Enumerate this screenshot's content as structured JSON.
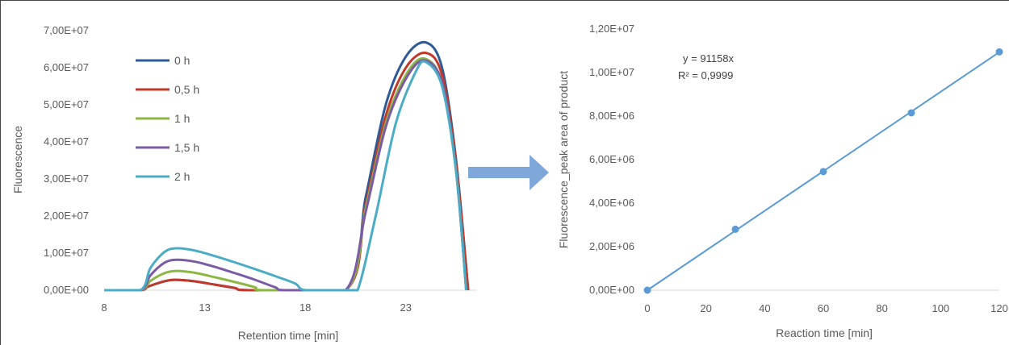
{
  "chart_data": [
    {
      "type": "line",
      "xlabel": "Retention  time [min]",
      "ylabel": "Fluorescence",
      "xlim": [
        8,
        26.5
      ],
      "ylim": [
        0,
        70000000
      ],
      "x_ticks": [
        "8",
        "13",
        "18",
        "23"
      ],
      "y_ticks": [
        "0,00E+00",
        "1,00E+07",
        "2,00E+07",
        "3,00E+07",
        "4,00E+07",
        "5,00E+07",
        "6,00E+07",
        "7,00E+07"
      ],
      "legend_position": "top-left",
      "series": [
        {
          "name": "0 h",
          "color": "#2E5A98",
          "x": [
            8,
            9.8,
            10.2,
            11,
            11.5,
            12.5,
            13.5,
            14.5,
            15.2,
            20.0,
            21,
            22,
            23,
            24,
            24.8,
            25.5,
            26.1
          ],
          "y": [
            0,
            0,
            1000000,
            2400000,
            2800000,
            2400000,
            1500000,
            600000,
            0,
            0,
            25000000,
            50000000,
            63000000,
            66800000,
            60000000,
            35000000,
            0
          ]
        },
        {
          "name": "0,5 h",
          "color": "#C0392B",
          "x": [
            8,
            9.8,
            10.2,
            11,
            11.5,
            12.5,
            13.5,
            14.5,
            15.2,
            20.0,
            21,
            22,
            23,
            24,
            24.8,
            25.5,
            26.1
          ],
          "y": [
            0,
            0,
            1000000,
            2400000,
            2800000,
            2400000,
            1500000,
            600000,
            0,
            0,
            23000000,
            47000000,
            60000000,
            64000000,
            58000000,
            34000000,
            0
          ]
        },
        {
          "name": "1 h",
          "color": "#8DB743",
          "x": [
            8,
            9.8,
            10.3,
            11,
            11.6,
            12.5,
            13.5,
            14.5,
            15.5,
            15.9,
            20.0,
            21,
            22,
            23,
            23.9,
            24.8,
            25.5,
            26.0
          ],
          "y": [
            0,
            0,
            2500000,
            4600000,
            5200000,
            4700000,
            3500000,
            2200000,
            800000,
            0,
            0,
            22000000,
            45000000,
            58000000,
            62500000,
            56000000,
            32000000,
            0
          ]
        },
        {
          "name": "1,5 h",
          "color": "#7B5BA6",
          "x": [
            8,
            9.8,
            10.3,
            11,
            11.6,
            12.5,
            13.5,
            14.5,
            15.5,
            16.5,
            17.0,
            20.0,
            21,
            22,
            23,
            23.9,
            24.8,
            25.5,
            26.0
          ],
          "y": [
            0,
            0,
            4000000,
            7400000,
            8200000,
            7700000,
            6300000,
            4600000,
            2800000,
            800000,
            0,
            0,
            21000000,
            44000000,
            57000000,
            62000000,
            56000000,
            32000000,
            0
          ]
        },
        {
          "name": "2 h",
          "color": "#4BACC6",
          "x": [
            8,
            9.8,
            10.3,
            11,
            11.6,
            12.5,
            13.5,
            14.5,
            15.5,
            16.5,
            17.5,
            18.0,
            20.0,
            20.6,
            21.5,
            22.5,
            23.5,
            24.0,
            24.8,
            25.5,
            26.0
          ],
          "y": [
            0,
            0,
            6000000,
            10300000,
            11300000,
            10700000,
            9200000,
            7500000,
            5700000,
            3800000,
            1800000,
            0,
            0,
            0,
            20000000,
            45000000,
            59000000,
            61500000,
            55000000,
            32000000,
            0
          ]
        }
      ]
    },
    {
      "type": "scatter",
      "xlabel": "Reaction time [min]",
      "ylabel": "Fluorescence_peak area of product",
      "xlim": [
        0,
        120
      ],
      "ylim": [
        0,
        12000000
      ],
      "x_ticks": [
        "0",
        "20",
        "40",
        "60",
        "80",
        "100",
        "120"
      ],
      "y_ticks": [
        "0,00E+00",
        "2,00E+06",
        "4,00E+06",
        "6,00E+06",
        "8,00E+06",
        "1,00E+07",
        "1,20E+07"
      ],
      "trendline": {
        "slope": 91158,
        "equation": "y = 91158x",
        "r2": "R² = 0,9999"
      },
      "series": [
        {
          "color": "#5B9BD5",
          "x": [
            0,
            30,
            60,
            90,
            120
          ],
          "y": [
            0,
            2800000,
            5450000,
            8150000,
            10950000
          ]
        }
      ]
    }
  ],
  "arrow_color": "#7FA7D9"
}
